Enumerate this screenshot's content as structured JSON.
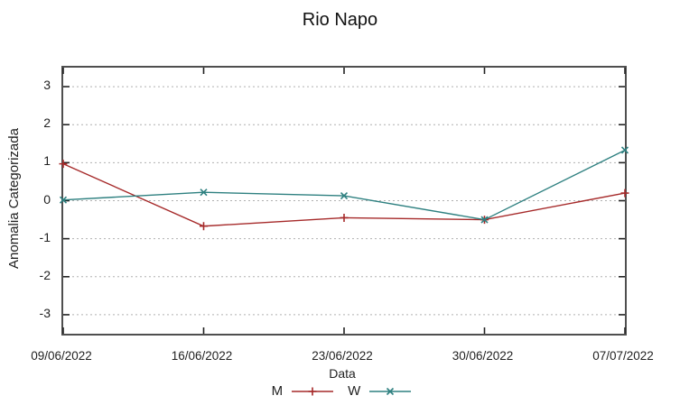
{
  "title": "Rio Napo",
  "background": "#ffffff",
  "chart_data": {
    "type": "line",
    "title": "Rio Napo",
    "xlabel": "Data",
    "ylabel": "Anomalia Categorizada",
    "categories": [
      "09/06/2022",
      "16/06/2022",
      "23/06/2022",
      "30/06/2022",
      "07/07/2022"
    ],
    "series": [
      {
        "name": "M",
        "color": "#a62a2a",
        "marker": "plus",
        "values": [
          0.97,
          -0.67,
          -0.45,
          -0.5,
          0.2
        ]
      },
      {
        "name": "W",
        "color": "#2e8080",
        "marker": "cross",
        "values": [
          0.02,
          0.22,
          0.13,
          -0.5,
          1.33
        ]
      }
    ],
    "ylim": [
      -3.5,
      3.5
    ],
    "yticks": [
      3,
      2,
      1,
      0,
      -1,
      -2,
      -3
    ],
    "grid": "horizontal-dotted",
    "grid_color": "#b0b0b0",
    "frame_color": "#4f4f4f",
    "legend_position": "bottom-center"
  }
}
